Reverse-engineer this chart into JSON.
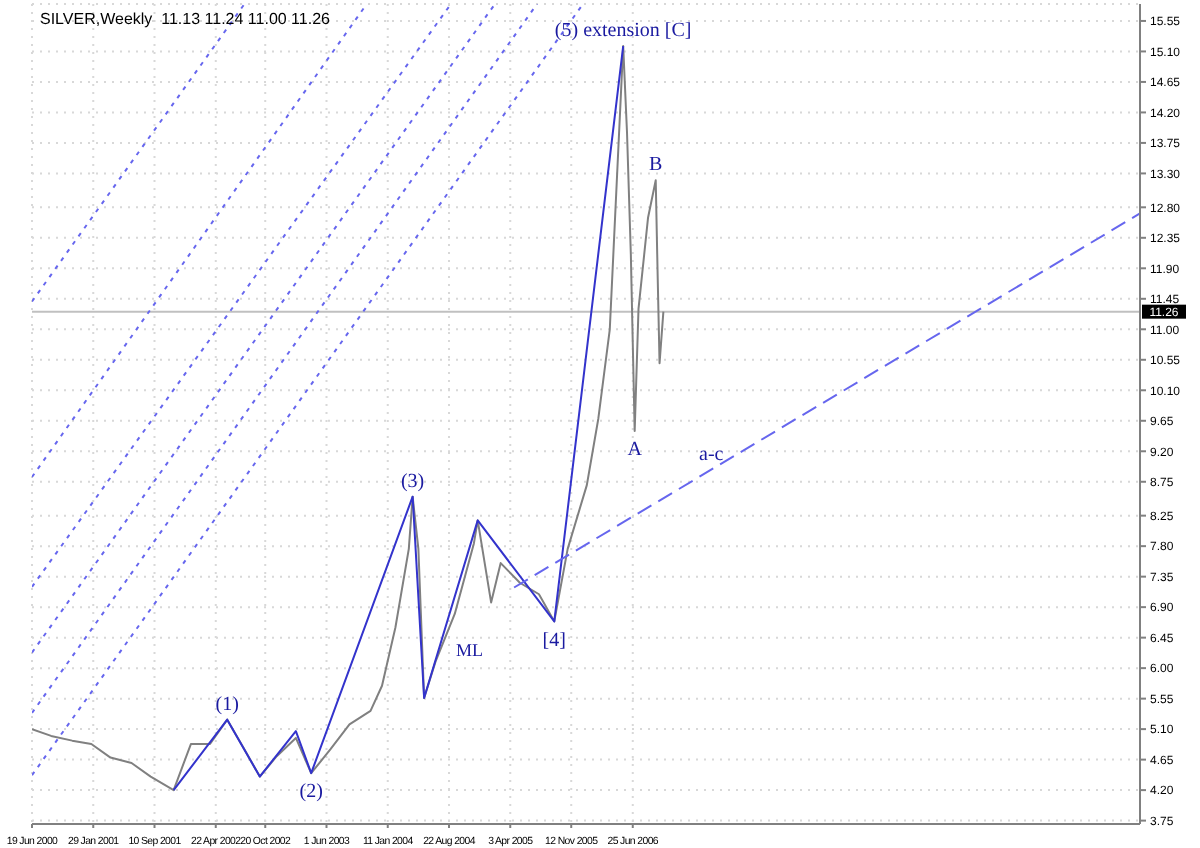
{
  "chart_data": {
    "type": "line",
    "title": "SILVER,Weekly  11.13 11.24 11.00 11.26",
    "xlim": [
      "2000-06-19",
      "2011-07-24"
    ],
    "xticks": [
      {
        "value": "2000-06-19",
        "label": "19 Jun 2000"
      },
      {
        "value": "2001-01-29",
        "label": "29 Jan 2001"
      },
      {
        "value": "2001-09-10",
        "label": "10 Sep 2001"
      },
      {
        "value": "2002-04-22",
        "label": "22 Apr 2002"
      },
      {
        "value": "2002-10-20",
        "label": "20 Oct 2002"
      },
      {
        "value": "2003-06-01",
        "label": "1 Jun 2003"
      },
      {
        "value": "2004-01-11",
        "label": "11 Jan 2004"
      },
      {
        "value": "2004-08-22",
        "label": "22 Aug 2004"
      },
      {
        "value": "2005-04-03",
        "label": "3 Apr 2005"
      },
      {
        "value": "2005-11-12",
        "label": "12 Nov 2005"
      },
      {
        "value": "2006-06-25",
        "label": "25 Jun 2006"
      }
    ],
    "ylim": [
      3.7,
      15.8
    ],
    "yticks": [
      {
        "value": 3.75,
        "label": "3.75"
      },
      {
        "value": 4.2,
        "label": "4.20"
      },
      {
        "value": 4.65,
        "label": "4.65"
      },
      {
        "value": 5.1,
        "label": "5.10"
      },
      {
        "value": 5.55,
        "label": "5.55"
      },
      {
        "value": 6,
        "label": "6.00"
      },
      {
        "value": 6.45,
        "label": "6.45"
      },
      {
        "value": 6.9,
        "label": "6.90"
      },
      {
        "value": 7.35,
        "label": "7.35"
      },
      {
        "value": 7.8,
        "label": "7.80"
      },
      {
        "value": 8.25,
        "label": "8.25"
      },
      {
        "value": 8.75,
        "label": "8.75"
      },
      {
        "value": 9.2,
        "label": "9.20"
      },
      {
        "value": 9.65,
        "label": "9.65"
      },
      {
        "value": 10.1,
        "label": "10.10"
      },
      {
        "value": 10.55,
        "label": "10.55"
      },
      {
        "value": 11,
        "label": "11.00"
      },
      {
        "value": 11.45,
        "label": "11.45"
      },
      {
        "value": 11.9,
        "label": "11.90"
      },
      {
        "value": 12.35,
        "label": "12.35"
      },
      {
        "value": 12.8,
        "label": "12.80"
      },
      {
        "value": 13.3,
        "label": "13.30"
      },
      {
        "value": 13.75,
        "label": "13.75"
      },
      {
        "value": 14.2,
        "label": "14.20"
      },
      {
        "value": 14.65,
        "label": "14.65"
      },
      {
        "value": 15.1,
        "label": "15.10"
      },
      {
        "value": 15.55,
        "label": "15.55"
      }
    ],
    "grid": true,
    "marker": "none",
    "series": [
      {
        "color": "#808080",
        "line_style": "solid",
        "x": [
          "2000-06-19",
          "2000-08-28",
          "2000-11-13",
          "2001-01-22",
          "2001-04-02",
          "2001-06-18",
          "2001-08-27",
          "2001-11-19",
          "2002-01-21",
          "2002-04-01",
          "2002-06-03",
          "2002-08-05",
          "2002-09-30",
          "2002-12-01",
          "2003-02-09",
          "2003-04-06",
          "2003-06-15",
          "2003-08-24",
          "2003-11-09",
          "2003-12-21",
          "2004-02-08",
          "2004-03-28",
          "2004-04-11",
          "2004-05-02",
          "2004-05-23",
          "2004-07-04",
          "2004-09-12",
          "2004-11-21",
          "2004-12-05",
          "2005-01-23",
          "2005-02-27",
          "2005-05-08",
          "2005-07-17",
          "2005-09-11",
          "2005-10-30",
          "2006-01-08",
          "2006-02-19",
          "2006-04-02",
          "2006-05-21",
          "2006-06-04",
          "2006-06-18",
          "2006-07-02",
          "2006-07-16",
          "2006-08-20",
          "2006-09-17",
          "2006-09-24",
          "2006-10-01",
          "2006-10-15"
        ],
        "values": [
          5.1,
          5.0,
          4.93,
          4.88,
          4.68,
          4.6,
          4.4,
          4.2,
          4.88,
          4.88,
          5.24,
          4.8,
          4.4,
          4.7,
          4.97,
          4.45,
          4.8,
          5.17,
          5.37,
          5.74,
          6.6,
          7.76,
          8.53,
          7.76,
          5.56,
          6.1,
          6.8,
          7.84,
          8.18,
          6.97,
          7.55,
          7.26,
          7.09,
          6.69,
          7.76,
          8.7,
          9.68,
          11.0,
          15.18,
          13.9,
          12.1,
          9.5,
          11.3,
          12.65,
          13.2,
          11.8,
          10.5,
          11.26
        ]
      },
      {
        "color": "#3333cc",
        "line_style": "solid",
        "x": [
          "2001-11-19",
          "2002-06-03",
          "2002-09-30",
          "2003-02-09",
          "2003-04-06",
          "2004-04-11",
          "2004-05-23",
          "2004-12-05",
          "2005-09-11",
          "2006-05-21"
        ],
        "values": [
          4.2,
          5.24,
          4.4,
          5.07,
          4.45,
          8.53,
          5.56,
          8.18,
          6.69,
          15.18
        ]
      },
      {
        "color": "#6666ee",
        "line_style": "dashed",
        "x": [
          "2005-04-17",
          "2011-07-24"
        ],
        "values": [
          7.19,
          12.71
        ]
      },
      {
        "color": "#6666ee",
        "line_style": "dotted",
        "x": [
          "2000-06-19",
          "2002-08-05"
        ],
        "values": [
          11.41,
          15.8
        ]
      },
      {
        "color": "#6666ee",
        "line_style": "dotted",
        "x": [
          "2000-06-19",
          "2003-10-26"
        ],
        "values": [
          8.82,
          15.8
        ]
      },
      {
        "color": "#6666ee",
        "line_style": "dotted",
        "x": [
          "2000-06-19",
          "2004-08-29"
        ],
        "values": [
          7.2,
          15.8
        ]
      },
      {
        "color": "#6666ee",
        "line_style": "dotted",
        "x": [
          "2000-06-19",
          "2005-02-06"
        ],
        "values": [
          6.23,
          15.8
        ]
      },
      {
        "color": "#6666ee",
        "line_style": "dotted",
        "x": [
          "2000-06-19",
          "2005-07-10"
        ],
        "values": [
          5.34,
          15.8
        ]
      },
      {
        "color": "#6666ee",
        "line_style": "dotted",
        "x": [
          "2000-06-19",
          "2005-12-25"
        ],
        "values": [
          4.42,
          15.8
        ]
      }
    ],
    "ref_lines": [
      {
        "axis": "y",
        "value": 11.26,
        "label": "11.26",
        "color": "#c0c0c0"
      }
    ],
    "annotations": [
      {
        "text": "(1)",
        "x": "2002-06-03",
        "y": 5.24
      },
      {
        "text": "(2)",
        "x": "2003-04-06",
        "y": 4.45
      },
      {
        "text": "(3)",
        "x": "2004-04-11",
        "y": 8.53
      },
      {
        "text": "[4]",
        "x": "2005-09-11",
        "y": 6.69
      },
      {
        "text": "(5) extension [C]",
        "x": "2006-05-21",
        "y": 15.18
      },
      {
        "text": "B",
        "x": "2006-09-17",
        "y": 13.2
      },
      {
        "text": "A",
        "x": "2006-07-02",
        "y": 9.5
      },
      "ML",
      {
        "text": "a-c",
        "x": "2007-04-08",
        "y": 8.93
      }
    ]
  }
}
